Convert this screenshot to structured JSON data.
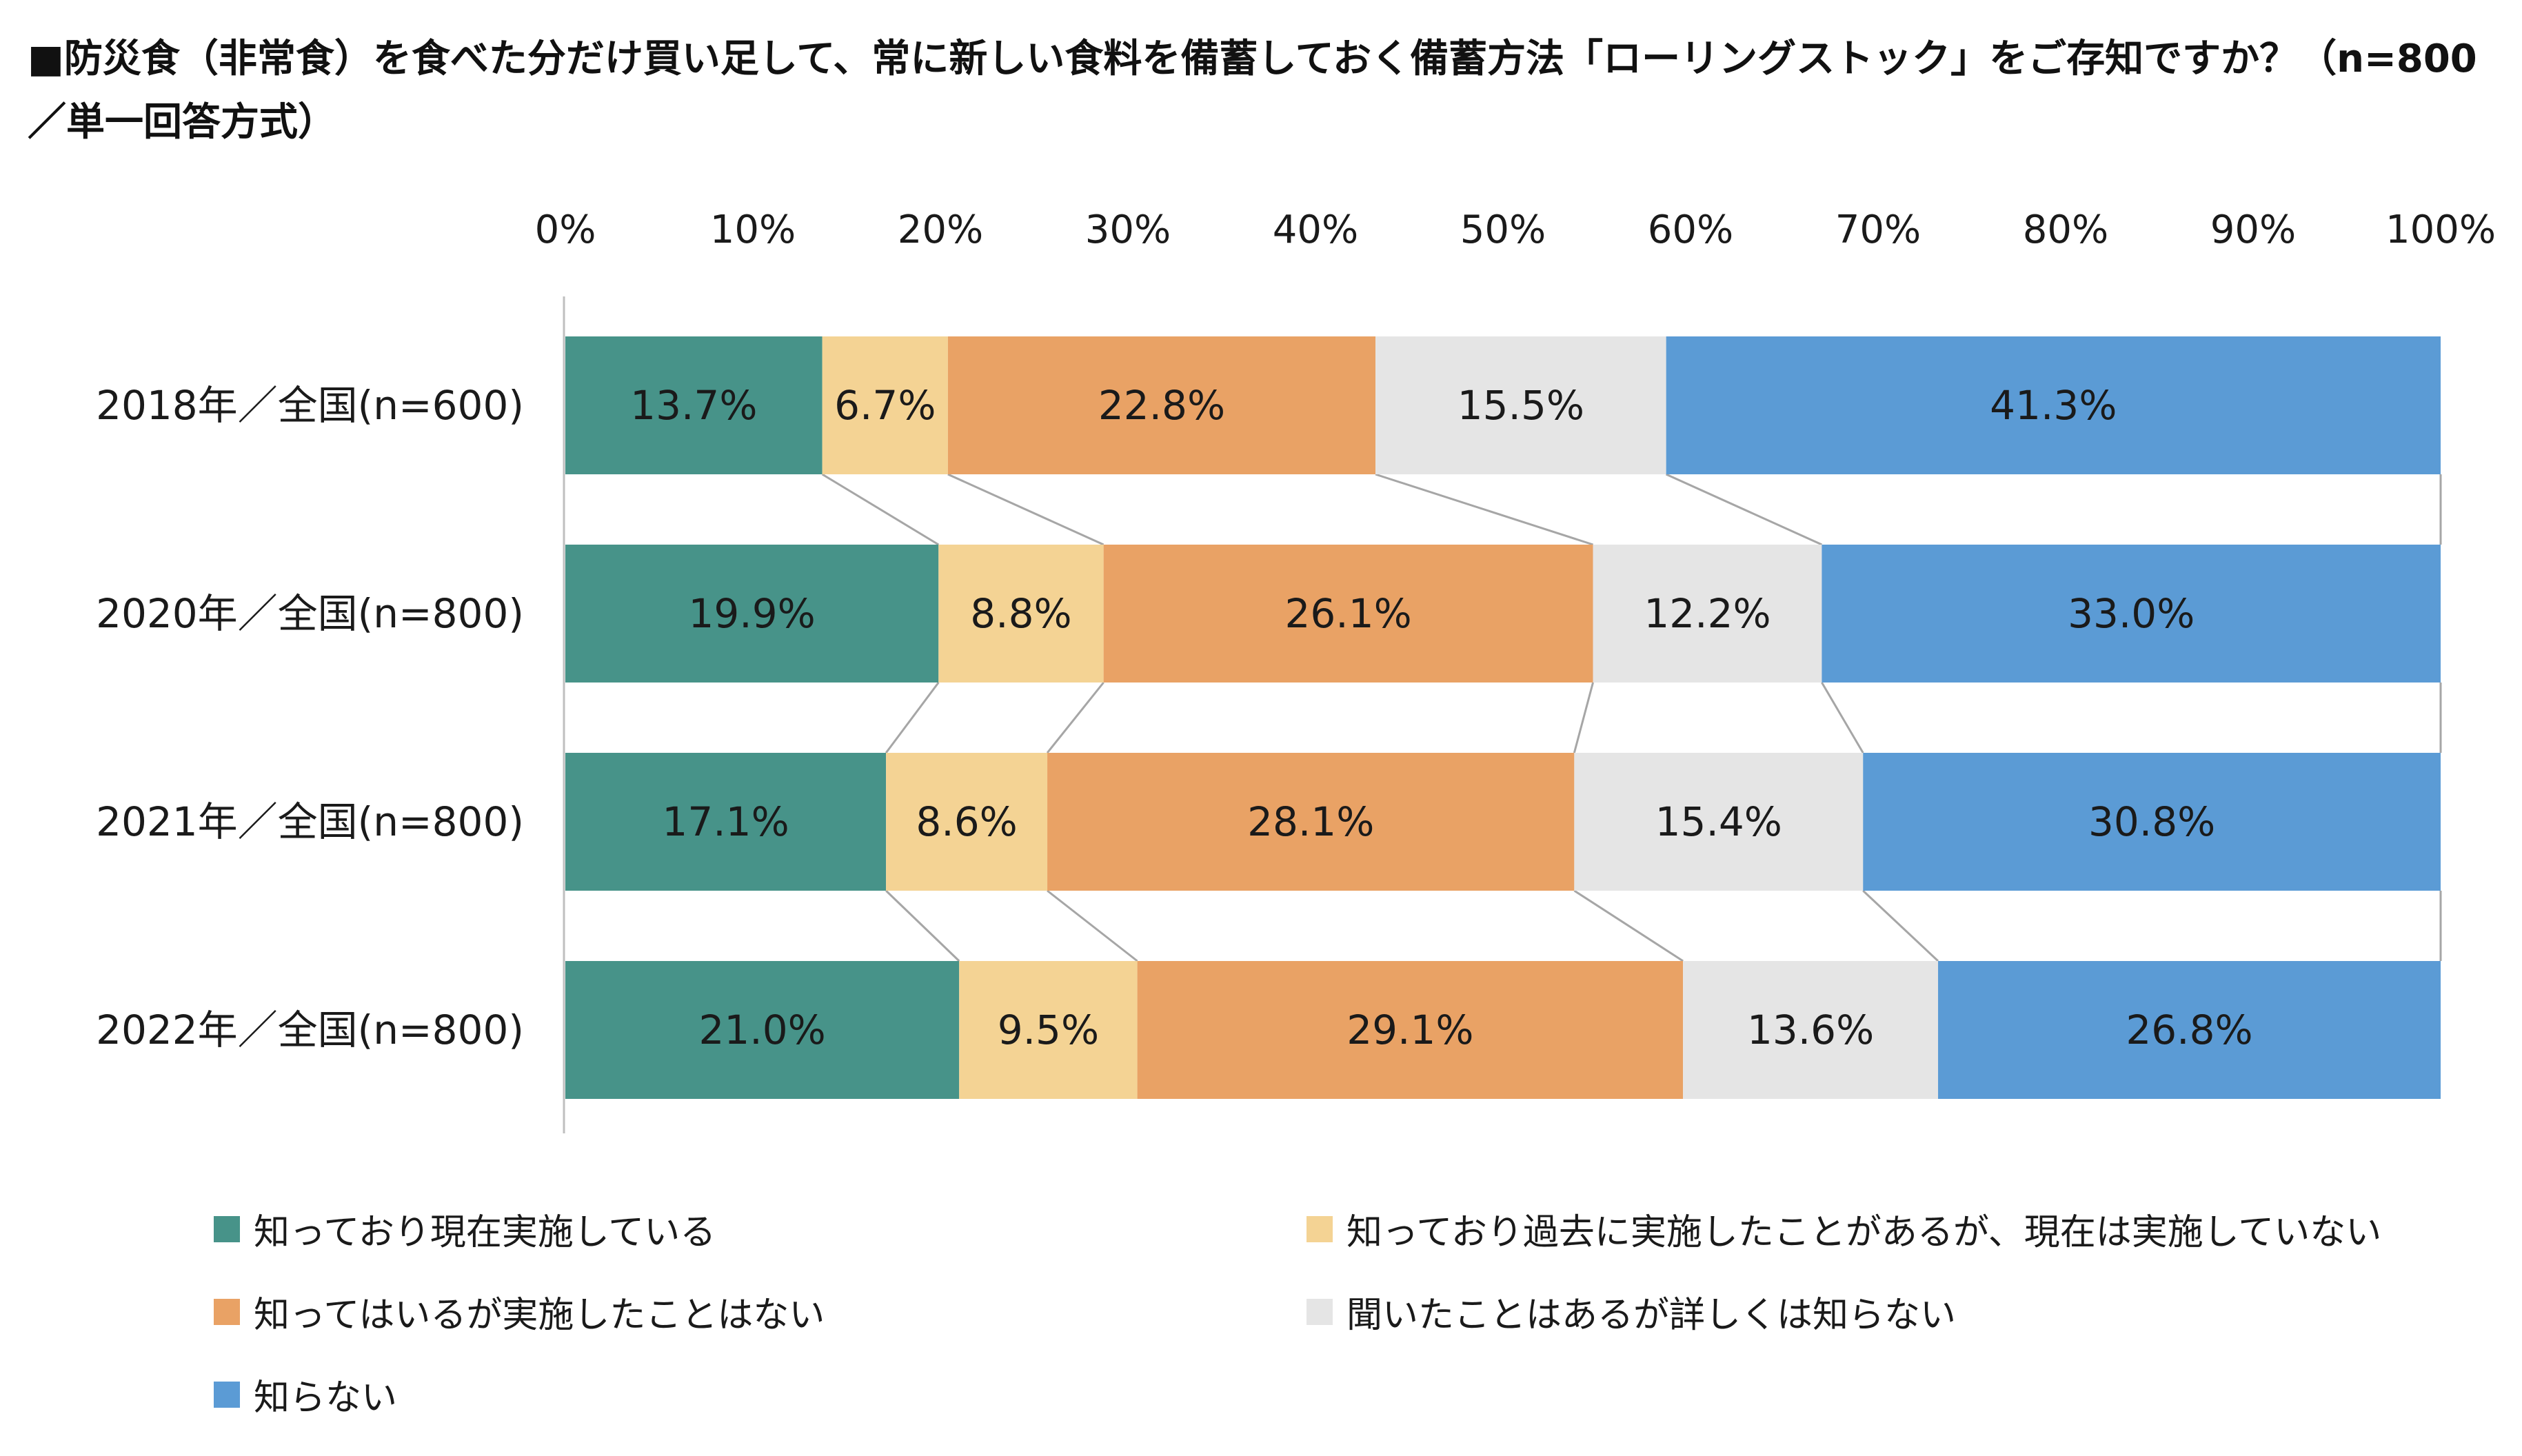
{
  "title": "■防災食（非常食）を食べた分だけ買い足して、常に新しい食料を備蓄しておく備蓄方法「ローリングストック」をご存知ですか？（n=800／単一回答方式）",
  "chart_data": {
    "type": "bar",
    "orientation": "horizontal",
    "stacked": true,
    "percent_stacked": true,
    "title": "■防災食（非常食）を食べた分だけ買い足して、常に新しい食料を備蓄しておく備蓄方法「ローリングストック」をご存知ですか？（n=800／単一回答方式）",
    "categories": [
      "2018年／全国(n=600)",
      "2020年／全国(n=800)",
      "2021年／全国(n=800)",
      "2022年／全国(n=800)"
    ],
    "x_ticks": [
      "0%",
      "10%",
      "20%",
      "30%",
      "40%",
      "50%",
      "60%",
      "70%",
      "80%",
      "90%",
      "100%"
    ],
    "xlim": [
      0,
      100
    ],
    "x_axis_position": "top",
    "grid": false,
    "connector_lines": true,
    "legend_position": "bottom",
    "series": [
      {
        "name": "知っており現在実施している",
        "color": "#479389",
        "values": [
          13.7,
          19.9,
          17.1,
          21.0
        ],
        "labels": [
          "13.7%",
          "19.9%",
          "17.1%",
          "21.0%"
        ]
      },
      {
        "name": "知っており過去に実施したことがあるが、現在は実施していない",
        "color": "#F4D394",
        "values": [
          6.7,
          8.8,
          8.6,
          9.5
        ],
        "labels": [
          "6.7%",
          "8.8%",
          "8.6%",
          "9.5%"
        ]
      },
      {
        "name": "知ってはいるが実施したことはない",
        "color": "#E9A265",
        "values": [
          22.8,
          26.1,
          28.1,
          29.1
        ],
        "labels": [
          "22.8%",
          "26.1%",
          "28.1%",
          "29.1%"
        ]
      },
      {
        "name": "聞いたことはあるが詳しくは知らない",
        "color": "#E5E5E5",
        "values": [
          15.5,
          12.2,
          15.4,
          13.6
        ],
        "labels": [
          "15.5%",
          "12.2%",
          "15.4%",
          "13.6%"
        ]
      },
      {
        "name": "知らない",
        "color": "#5B9BD5",
        "values": [
          41.3,
          33.0,
          30.8,
          26.8
        ],
        "labels": [
          "41.3%",
          "33.0%",
          "30.8%",
          "26.8%"
        ]
      }
    ]
  }
}
